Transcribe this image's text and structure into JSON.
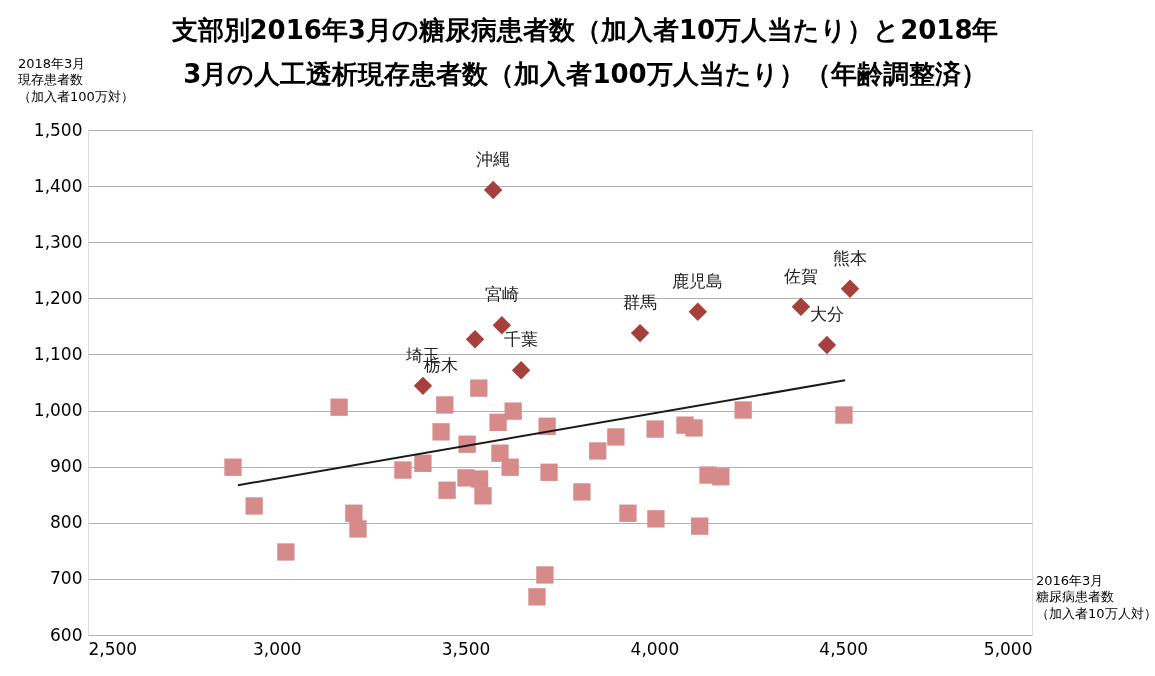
{
  "chart_data": {
    "type": "scatter",
    "title": "支部別2016年3月の糖尿病患者数（加入者10万人当たり）と2018年\n3月の人工透析現存患者数（加入者100万人当たり）（年齢調整済）",
    "xlabel": "2016年3月糖尿病患者数（加入者10万人対）",
    "ylabel": "2018年3月現存患者数（加入者100万対）",
    "xlim": [
      2500,
      5000
    ],
    "xticks": [
      {
        "value": 2500,
        "label": "2,500"
      },
      {
        "value": 3000,
        "label": "3,000"
      },
      {
        "value": 3500,
        "label": "3,500"
      },
      {
        "value": 4000,
        "label": "4,000"
      },
      {
        "value": 4500,
        "label": "4,500"
      },
      {
        "value": 5000,
        "label": "5,000"
      }
    ],
    "ylim": [
      600,
      1500
    ],
    "yticks": [
      600,
      700,
      800,
      900,
      {
        "value": 1000,
        "label": "1,000"
      },
      {
        "value": 1100,
        "label": "1,100"
      },
      {
        "value": 1200,
        "label": "1,200"
      },
      {
        "value": 1300,
        "label": "1,300"
      },
      {
        "value": 1400,
        "label": "1,400"
      },
      {
        "value": 1500,
        "label": "1,500"
      }
    ],
    "grid": "y",
    "legend": false,
    "series": [
      {
        "type": "scatter",
        "marker": "square",
        "color": "#d68b8a",
        "x": [
          2884,
          2940,
          3024,
          3165,
          3204,
          3215,
          3334,
          3387,
          3445,
          3435,
          3451,
          3504,
          3501,
          3535,
          3537,
          3546,
          3586,
          3591,
          3618,
          3626,
          3716,
          3721,
          3689,
          3710,
          3808,
          3850,
          3898,
          3930,
          4002,
          4004,
          4081,
          4105,
          4120,
          4142,
          4176,
          4235,
          4502
        ],
        "values": [
          899,
          830,
          748,
          1006,
          817,
          789,
          894,
          906,
          1010,
          962,
          858,
          940,
          880,
          1040,
          878,
          848,
          979,
          924,
          899,
          999,
          972,
          890,
          668,
          707,
          855,
          928,
          953,
          817,
          967,
          807,
          974,
          969,
          794,
          885,
          882,
          1001,
          992
        ]
      },
      {
        "type": "scatter",
        "marker": "diamond",
        "color": "#a5403d",
        "x": [
          3573,
          3596,
          3525,
          3962,
          4115,
          4388,
          4518,
          4457,
          3647,
          3387
        ],
        "values": [
          1393,
          1152,
          1127,
          1138,
          1176,
          1185,
          1217,
          1117,
          1072,
          1044
        ]
      },
      {
        "type": "line",
        "line_style": "solid",
        "color": "#1a1a1a",
        "x": [
          2897,
          4505
        ],
        "values": [
          867,
          1054
        ]
      }
    ],
    "annotations": [
      {
        "text": "沖縄",
        "x": 3573,
        "y": 1393
      },
      {
        "text": "宮崎",
        "x": 3596,
        "y": 1152
      },
      {
        "text": "鹿児島",
        "x": 4115,
        "y": 1176
      },
      {
        "text": "群馬",
        "x": 3962,
        "y": 1138
      },
      {
        "text": "佐賀",
        "x": 4388,
        "y": 1185
      },
      {
        "text": "熊本",
        "x": 4518,
        "y": 1217
      },
      {
        "text": "埼玉",
        "x": 3387,
        "y": 1044
      },
      {
        "text": "栃木",
        "x": 3387,
        "y": 1044
      },
      {
        "text": "千葉",
        "x": 3647,
        "y": 1072
      },
      {
        "text": "大分",
        "x": 4457,
        "y": 1117
      }
    ]
  }
}
